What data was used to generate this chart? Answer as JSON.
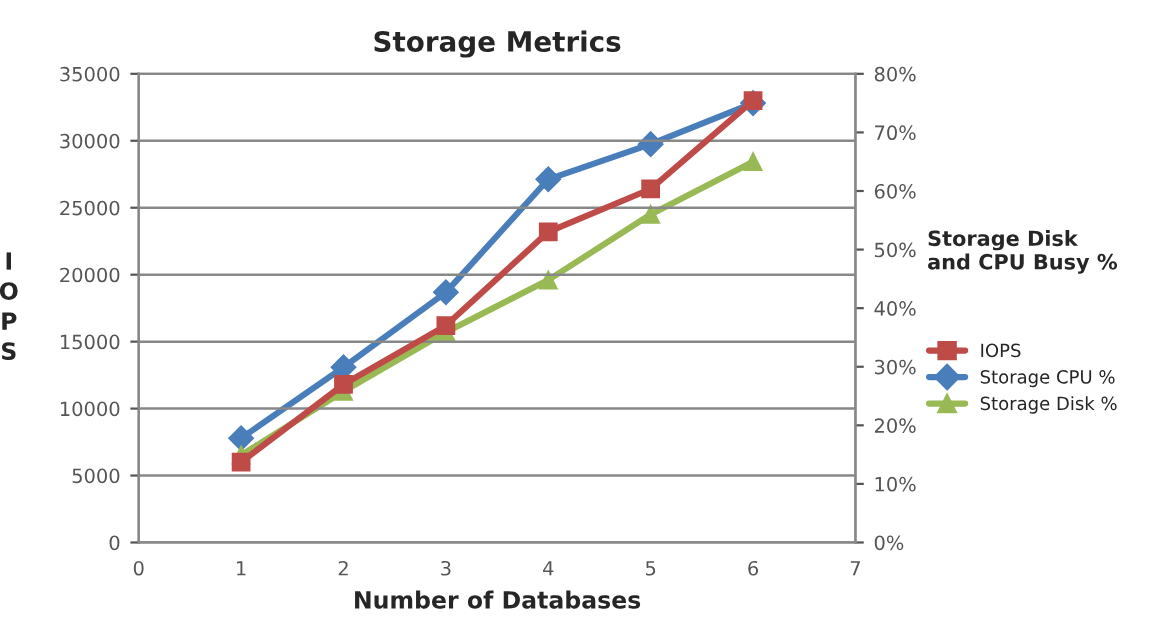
{
  "chart_data": {
    "type": "line",
    "title": "Storage Metrics",
    "xlabel": "Number of Databases",
    "ylabel": "I\nO\nP\nS",
    "y2label": "Storage Disk\nand CPU Busy %",
    "x": [
      1,
      2,
      3,
      4,
      5,
      6
    ],
    "series": [
      {
        "name": "IOPS",
        "color": "#be4b48",
        "marker": "square",
        "values": [
          6000,
          11800,
          16200,
          23200,
          26400,
          33000
        ]
      },
      {
        "name": "Storage CPU %",
        "color": "#4a7ebb",
        "marker": "diamond",
        "axis": "y2",
        "values": [
          17.8,
          29.9,
          42.7,
          62,
          68,
          75
        ]
      },
      {
        "name": "Storage Disk %",
        "color": "#98b954",
        "marker": "triangle",
        "axis": "y2",
        "values": [
          14.9,
          25.8,
          35.9,
          44.8,
          56,
          65
        ]
      }
    ],
    "xlim": [
      0,
      7
    ],
    "xticks": [
      0,
      1,
      2,
      3,
      4,
      5,
      6,
      7
    ],
    "ylim": [
      0,
      35000
    ],
    "yticks": [
      0,
      5000,
      10000,
      15000,
      20000,
      25000,
      30000,
      35000
    ],
    "y2lim": [
      0,
      80
    ],
    "y2ticks": [
      {
        "value": 0,
        "label": "0%"
      },
      {
        "value": 10,
        "label": "10%"
      },
      {
        "value": 20,
        "label": "20%"
      },
      {
        "value": 30,
        "label": "30%"
      },
      {
        "value": 40,
        "label": "40%"
      },
      {
        "value": 50,
        "label": "50%"
      },
      {
        "value": 60,
        "label": "60%"
      },
      {
        "value": 70,
        "label": "70%"
      },
      {
        "value": 80,
        "label": "80%"
      }
    ],
    "grid": "y",
    "legend": "right",
    "line_style": "solid"
  }
}
